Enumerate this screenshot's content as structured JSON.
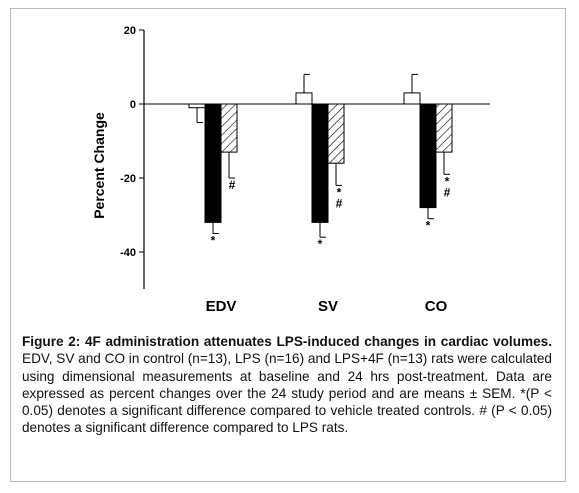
{
  "chart_data": {
    "type": "bar",
    "ylabel": "Percent Change",
    "ylim": [
      -50,
      20
    ],
    "yticks": [
      20,
      0,
      -20,
      -40
    ],
    "yticklabels": [
      "20",
      "0",
      "-20",
      "-40"
    ],
    "categories": [
      "EDV",
      "SV",
      "CO"
    ],
    "series": [
      {
        "name": "control",
        "fill": "white",
        "values": [
          -1,
          3,
          3
        ],
        "errors": [
          4,
          5,
          5
        ]
      },
      {
        "name": "LPS",
        "fill": "black",
        "values": [
          -32,
          -32,
          -28
        ],
        "errors": [
          3,
          4,
          3
        ]
      },
      {
        "name": "LPS+4F",
        "fill": "hatched",
        "values": [
          -13,
          -16,
          -13
        ],
        "errors": [
          7,
          6,
          6
        ]
      }
    ],
    "annotations": [
      {
        "category": "EDV",
        "series": "LPS",
        "text": "*"
      },
      {
        "category": "EDV",
        "series": "LPS+4F",
        "text": "#"
      },
      {
        "category": "SV",
        "series": "LPS",
        "text": "*"
      },
      {
        "category": "SV",
        "series": "LPS+4F",
        "text": "*\n#"
      },
      {
        "category": "CO",
        "series": "LPS",
        "text": "*"
      },
      {
        "category": "CO",
        "series": "LPS+4F",
        "text": "*\n#"
      }
    ]
  },
  "caption": {
    "bold": "Figure 2: 4F administration attenuates LPS-induced changes in cardiac volumes.",
    "text": "EDV, SV and CO in control (n=13), LPS (n=16) and LPS+4F (n=13) rats were calculated using dimensional measurements at baseline and 24 hrs post-treatment. Data are expressed as percent changes over the 24 study period and are means ± SEM. *(P < 0.05) denotes a significant difference compared to vehicle treated controls. # (P < 0.05) denotes a significant difference compared to LPS rats."
  }
}
